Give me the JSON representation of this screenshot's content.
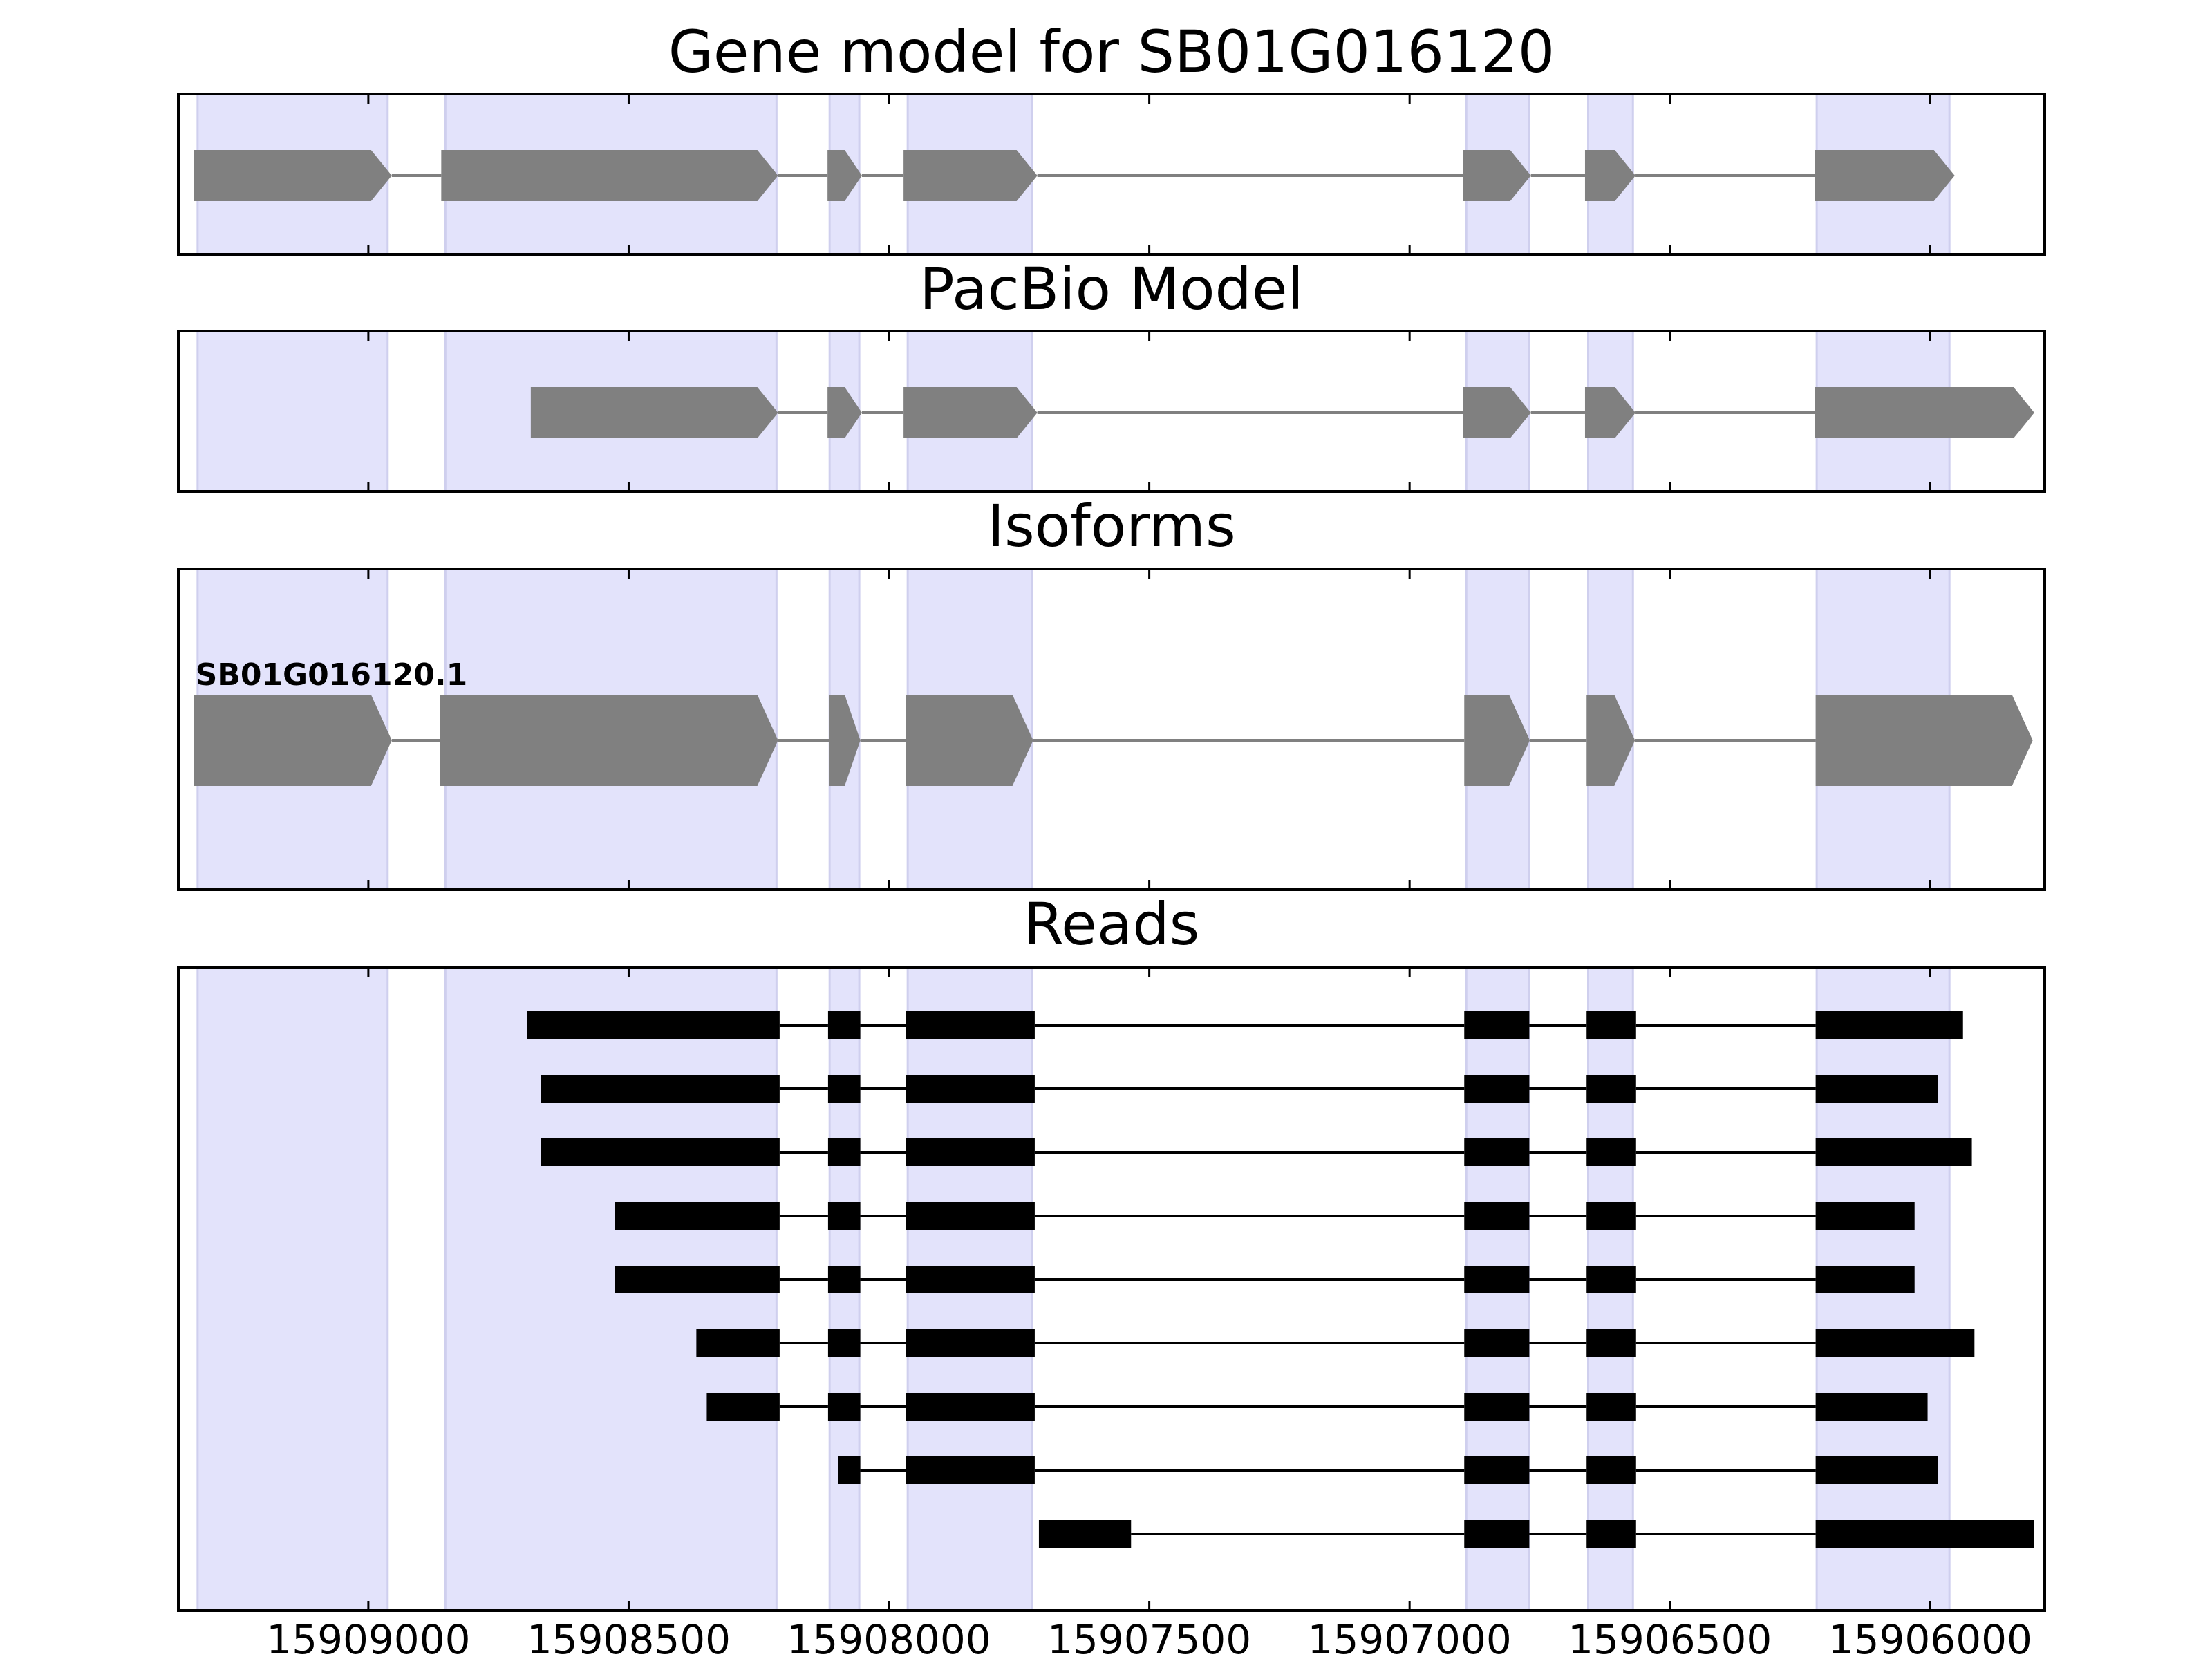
{
  "chart_data": {
    "type": "gene-track",
    "x_axis": {
      "reversed": true,
      "xlim": [
        15909365,
        15905780
      ],
      "ticks": [
        15909000,
        15908500,
        15908000,
        15907500,
        15907000,
        15906500,
        15906000
      ],
      "tick_labels": [
        "15909000",
        "15908500",
        "15908000",
        "15907500",
        "15907000",
        "15906500",
        "15906000"
      ]
    },
    "shaded_exon_regions": [
      [
        15909328,
        15908963
      ],
      [
        15908852,
        15908216
      ],
      [
        15908114,
        15908057
      ],
      [
        15907964,
        15907725
      ],
      [
        15906891,
        15906771
      ],
      [
        15906657,
        15906571
      ],
      [
        15906218,
        15905963
      ]
    ],
    "colors": {
      "exon_shading": "#e3e3fb",
      "exon_shading_edge": "#cfcfee",
      "feature": "#808080",
      "read": "#000000"
    },
    "panels": [
      {
        "title": "Gene model for SB01G016120",
        "kind": "model",
        "exons": [
          [
            15909335,
            15908955
          ],
          [
            15908860,
            15908213
          ],
          [
            15908118,
            15908052
          ],
          [
            15907972,
            15907715
          ],
          [
            15906897,
            15906767
          ],
          [
            15906663,
            15906566
          ],
          [
            15906222,
            15905953
          ]
        ]
      },
      {
        "title": "PacBio Model",
        "kind": "model",
        "exons": [
          [
            15908688,
            15908213
          ],
          [
            15908118,
            15908052
          ],
          [
            15907972,
            15907715
          ],
          [
            15906897,
            15906767
          ],
          [
            15906663,
            15906566
          ],
          [
            15906222,
            15905800
          ]
        ]
      },
      {
        "title": "Isoforms",
        "kind": "isoform",
        "isoforms": [
          {
            "label": "SB01G016120.1",
            "exons": [
              [
                15909335,
                15908955
              ],
              [
                15908862,
                15908213
              ],
              [
                15908115,
                15908055
              ],
              [
                15907967,
                15907723
              ],
              [
                15906895,
                15906769
              ],
              [
                15906660,
                15906567
              ],
              [
                15906220,
                15905803
              ]
            ]
          }
        ]
      },
      {
        "title": "Reads",
        "kind": "reads",
        "reads": [
          {
            "exons": [
              [
                15908695,
                15908210
              ],
              [
                15908117,
                15908055
              ],
              [
                15907967,
                15907720
              ],
              [
                15906895,
                15906770
              ],
              [
                15906660,
                15906565
              ],
              [
                15906220,
                15905937
              ]
            ]
          },
          {
            "exons": [
              [
                15908668,
                15908210
              ],
              [
                15908117,
                15908055
              ],
              [
                15907967,
                15907720
              ],
              [
                15906895,
                15906770
              ],
              [
                15906660,
                15906565
              ],
              [
                15906220,
                15905985
              ]
            ]
          },
          {
            "exons": [
              [
                15908668,
                15908210
              ],
              [
                15908117,
                15908055
              ],
              [
                15907967,
                15907720
              ],
              [
                15906895,
                15906770
              ],
              [
                15906660,
                15906565
              ],
              [
                15906220,
                15905920
              ]
            ]
          },
          {
            "exons": [
              [
                15908527,
                15908210
              ],
              [
                15908117,
                15908055
              ],
              [
                15907967,
                15907720
              ],
              [
                15906895,
                15906770
              ],
              [
                15906660,
                15906565
              ],
              [
                15906220,
                15906030
              ]
            ]
          },
          {
            "exons": [
              [
                15908527,
                15908210
              ],
              [
                15908117,
                15908055
              ],
              [
                15907967,
                15907720
              ],
              [
                15906895,
                15906770
              ],
              [
                15906660,
                15906565
              ],
              [
                15906220,
                15906030
              ]
            ]
          },
          {
            "exons": [
              [
                15908370,
                15908210
              ],
              [
                15908117,
                15908055
              ],
              [
                15907967,
                15907720
              ],
              [
                15906895,
                15906770
              ],
              [
                15906660,
                15906565
              ],
              [
                15906220,
                15905915
              ]
            ]
          },
          {
            "exons": [
              [
                15908350,
                15908210
              ],
              [
                15908117,
                15908055
              ],
              [
                15907967,
                15907720
              ],
              [
                15906895,
                15906770
              ],
              [
                15906660,
                15906565
              ],
              [
                15906220,
                15906005
              ]
            ]
          },
          {
            "exons": [
              [
                15908097,
                15908055
              ],
              [
                15907967,
                15907720
              ],
              [
                15906895,
                15906770
              ],
              [
                15906660,
                15906565
              ],
              [
                15906220,
                15905985
              ]
            ]
          },
          {
            "exons": [
              [
                15907712,
                15907535
              ],
              [
                15906895,
                15906770
              ],
              [
                15906660,
                15906565
              ],
              [
                15906220,
                15905800
              ]
            ]
          }
        ]
      }
    ]
  }
}
